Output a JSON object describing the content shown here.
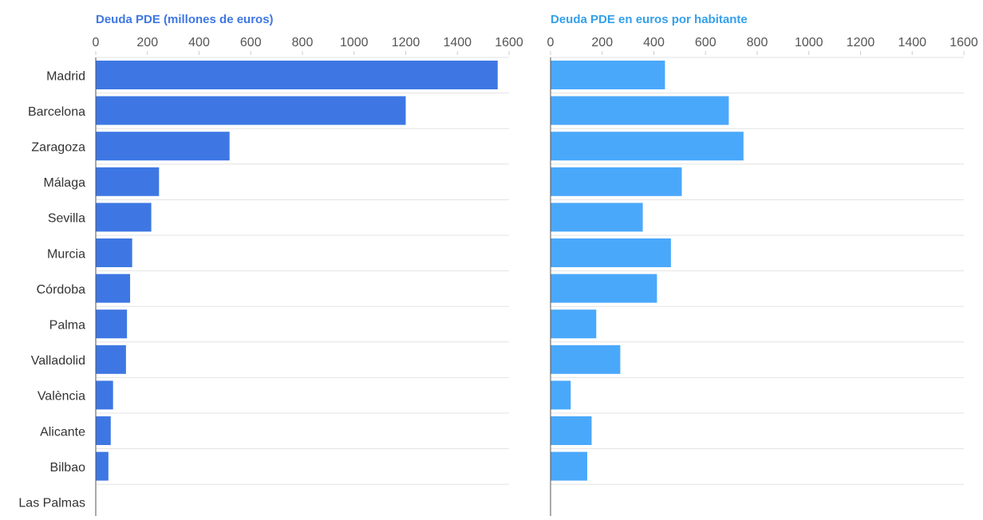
{
  "chart_data": [
    {
      "type": "bar",
      "orientation": "horizontal",
      "title": "Deuda PDE (millones de euros)",
      "xlabel": "",
      "ylabel": "",
      "categories": [
        "Madrid",
        "Barcelona",
        "Zaragoza",
        "Málaga",
        "Sevilla",
        "Murcia",
        "Córdoba",
        "Palma",
        "Valladolid",
        "València",
        "Alicante",
        "Bilbao",
        "Las Palmas"
      ],
      "values": [
        1556,
        1200,
        518,
        245,
        215,
        141,
        133,
        121,
        117,
        67,
        58,
        49,
        0
      ],
      "xlim": [
        0,
        1600
      ],
      "ticks": [
        "0",
        "200",
        "400",
        "600",
        "800",
        "1000",
        "1200",
        "1400",
        "1600"
      ],
      "grid": true,
      "color": "#3e77e3",
      "title_color": "#3e77e3"
    },
    {
      "type": "bar",
      "orientation": "horizontal",
      "title": "Deuda PDE en euros por habitante",
      "xlabel": "",
      "ylabel": "",
      "categories": [
        "Madrid",
        "Barcelona",
        "Zaragoza",
        "Málaga",
        "Sevilla",
        "Murcia",
        "Córdoba",
        "Palma",
        "Valladolid",
        "València",
        "Alicante",
        "Bilbao",
        "Las Palmas"
      ],
      "values": [
        443,
        690,
        747,
        508,
        357,
        466,
        412,
        177,
        270,
        78,
        159,
        142,
        0
      ],
      "xlim": [
        0,
        1600
      ],
      "ticks": [
        "0",
        "200",
        "400",
        "600",
        "800",
        "1000",
        "1200",
        "1400",
        "1600"
      ],
      "grid": true,
      "color": "#4aa8fb",
      "title_color": "#33a0ec"
    }
  ]
}
